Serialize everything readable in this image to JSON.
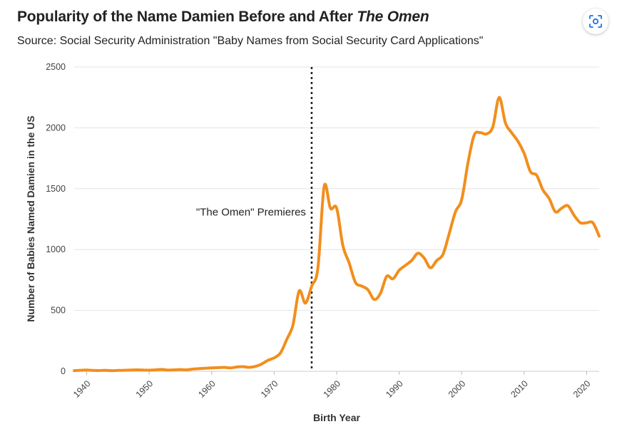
{
  "header": {
    "title_main": "Popularity of the Name Damien Before and After ",
    "title_italic": "The Omen",
    "subtitle": "Source: Social Security Administration \"Baby Names from Social Security Card Applications\""
  },
  "toolbar": {
    "lens_icon": "visual-search-icon"
  },
  "chart_data": {
    "type": "line",
    "title": "Popularity of the Name Damien Before and After The Omen",
    "xlabel": "Birth Year",
    "ylabel": "Number of Babies Named Damien in the US",
    "xlim": [
      1938,
      2022
    ],
    "ylim": [
      0,
      2500
    ],
    "x_ticks": [
      1940,
      1950,
      1960,
      1970,
      1980,
      1990,
      2000,
      2010,
      2020
    ],
    "y_ticks": [
      0,
      500,
      1000,
      1500,
      2000,
      2500
    ],
    "grid": "horizontal",
    "line_color": "#f28e1c",
    "annotation": {
      "x": 1976,
      "label": "\"The Omen\" Premieres",
      "style": "dotted vertical line"
    },
    "series": [
      {
        "x": [
          1938,
          1939,
          1940,
          1941,
          1942,
          1943,
          1944,
          1945,
          1946,
          1947,
          1948,
          1949,
          1950,
          1951,
          1952,
          1953,
          1954,
          1955,
          1956,
          1957,
          1958,
          1959,
          1960,
          1961,
          1962,
          1963,
          1964,
          1965,
          1966,
          1967,
          1968,
          1969,
          1970,
          1971,
          1972,
          1973,
          1974,
          1975,
          1976,
          1977,
          1978,
          1979,
          1980,
          1981,
          1982,
          1983,
          1984,
          1985,
          1986,
          1987,
          1988,
          1989,
          1990,
          1991,
          1992,
          1993,
          1994,
          1995,
          1996,
          1997,
          1998,
          1999,
          2000,
          2001,
          2002,
          2003,
          2004,
          2005,
          2006,
          2007,
          2008,
          2009,
          2010,
          2011,
          2012,
          2013,
          2014,
          2015,
          2016,
          2017,
          2018,
          2019,
          2020,
          2021,
          2022
        ],
        "values": [
          5,
          8,
          10,
          7,
          6,
          8,
          5,
          7,
          8,
          10,
          12,
          10,
          9,
          12,
          15,
          10,
          12,
          14,
          12,
          18,
          22,
          25,
          28,
          30,
          32,
          28,
          35,
          38,
          32,
          40,
          60,
          90,
          110,
          150,
          260,
          380,
          660,
          560,
          700,
          850,
          1520,
          1340,
          1340,
          1030,
          890,
          730,
          700,
          670,
          590,
          640,
          780,
          760,
          830,
          870,
          910,
          970,
          930,
          850,
          910,
          960,
          1130,
          1310,
          1410,
          1710,
          1940,
          1960,
          1950,
          2010,
          2250,
          2040,
          1960,
          1890,
          1790,
          1640,
          1610,
          1490,
          1420,
          1310,
          1340,
          1360,
          1280,
          1220,
          1220,
          1220,
          1110
        ]
      }
    ]
  }
}
